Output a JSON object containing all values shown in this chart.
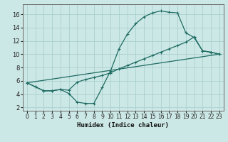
{
  "xlabel": "Humidex (Indice chaleur)",
  "bg_color": "#cce8e6",
  "grid_color": "#aacfcd",
  "line_color": "#1e6b62",
  "spine_color": "#666666",
  "xlim": [
    -0.5,
    23.5
  ],
  "ylim": [
    1.5,
    17.5
  ],
  "xticks": [
    0,
    1,
    2,
    3,
    4,
    5,
    6,
    7,
    8,
    9,
    10,
    11,
    12,
    13,
    14,
    15,
    16,
    17,
    18,
    19,
    20,
    21,
    22,
    23
  ],
  "yticks": [
    2,
    4,
    6,
    8,
    10,
    12,
    14,
    16
  ],
  "line1_x": [
    0,
    1,
    2,
    3,
    4,
    5,
    6,
    7,
    8,
    9,
    10,
    11,
    12,
    13,
    14,
    15,
    16,
    17,
    18,
    19,
    20,
    21,
    22,
    23
  ],
  "line1_y": [
    5.7,
    5.1,
    4.5,
    4.5,
    4.7,
    4.1,
    2.8,
    2.6,
    2.6,
    5.0,
    7.5,
    10.8,
    13.0,
    14.6,
    15.6,
    16.2,
    16.5,
    16.3,
    16.2,
    13.2,
    12.5,
    10.5,
    10.3,
    10.0
  ],
  "line2_x": [
    0,
    1,
    2,
    3,
    4,
    5,
    6,
    7,
    8,
    9,
    10,
    11,
    12,
    13,
    14,
    15,
    16,
    17,
    18,
    19,
    20,
    21,
    22,
    23
  ],
  "line2_y": [
    5.7,
    5.1,
    4.5,
    4.5,
    4.7,
    4.6,
    5.8,
    6.2,
    6.5,
    6.8,
    7.2,
    7.8,
    8.3,
    8.8,
    9.3,
    9.8,
    10.3,
    10.8,
    11.3,
    11.8,
    12.6,
    10.5,
    10.3,
    10.0
  ],
  "line3_x": [
    0,
    23
  ],
  "line3_y": [
    5.7,
    10.0
  ],
  "xlabel_fontsize": 6.5,
  "tick_fontsize": 5.5,
  "linewidth": 0.9,
  "marker_size": 3.0
}
